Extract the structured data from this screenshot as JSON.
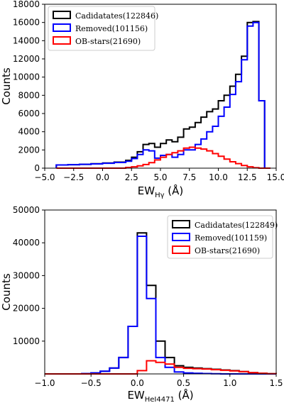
{
  "chart_data": [
    {
      "type": "histogram",
      "xlabel": "EW",
      "xlabel_sub": "Hγ",
      "xlabel_unit": " (Å)",
      "ylabel": "Counts",
      "xlim": [
        -5.0,
        15.0
      ],
      "ylim": [
        0,
        18000
      ],
      "xticks": [
        -5.0,
        -2.5,
        0.0,
        2.5,
        5.0,
        7.5,
        10.0,
        12.5,
        15.0
      ],
      "xtick_labels": [
        "−5.0",
        "−2.5",
        "0.0",
        "2.5",
        "5.0",
        "7.5",
        "10.0",
        "12.5",
        "15.0"
      ],
      "yticks": [
        0,
        2000,
        4000,
        6000,
        8000,
        10000,
        12000,
        14000,
        16000,
        18000
      ],
      "ytick_labels": [
        "0",
        "2000",
        "4000",
        "6000",
        "8000",
        "10000",
        "12000",
        "14000",
        "16000",
        "18000"
      ],
      "legend_position": "top-left",
      "bin_edges": [
        -4.0,
        -3.0,
        -2.0,
        -1.0,
        0.0,
        1.0,
        2.0,
        2.5,
        3.0,
        3.5,
        4.0,
        4.5,
        5.0,
        5.5,
        6.0,
        6.5,
        7.0,
        7.5,
        8.0,
        8.5,
        9.0,
        9.5,
        10.0,
        10.5,
        11.0,
        11.5,
        12.0,
        12.5,
        13.0,
        13.5,
        14.0,
        14.5
      ],
      "series": [
        {
          "name": "Cadidatates(122846)",
          "color": "#000000",
          "values": [
            350,
            380,
            420,
            480,
            560,
            660,
            860,
            1200,
            1800,
            2600,
            2700,
            2300,
            2700,
            3100,
            2900,
            3400,
            4300,
            4500,
            5000,
            5600,
            6200,
            6500,
            7400,
            8000,
            9000,
            10300,
            12300,
            16000,
            16100,
            7400,
            0
          ]
        },
        {
          "name": "Removed(101156)",
          "color": "#0000ff",
          "values": [
            350,
            380,
            420,
            470,
            540,
            620,
            760,
            1050,
            1500,
            2000,
            1900,
            1100,
            1400,
            1500,
            1200,
            1500,
            2000,
            2000,
            2600,
            3200,
            4000,
            4600,
            5700,
            6700,
            8100,
            9500,
            11900,
            15600,
            16000,
            7400,
            0
          ]
        },
        {
          "name": "OB-stars(21690)",
          "color": "#ff0000",
          "values": [
            0,
            0,
            0,
            0,
            0,
            0,
            80,
            150,
            250,
            400,
            600,
            900,
            1200,
            1500,
            1700,
            1900,
            2200,
            2300,
            2200,
            2100,
            1900,
            1600,
            1300,
            1000,
            700,
            500,
            300,
            150,
            50,
            0,
            0
          ]
        }
      ]
    },
    {
      "type": "histogram",
      "xlabel": "EW",
      "xlabel_sub": "HeI4471",
      "xlabel_unit": " (Å)",
      "ylabel": "Counts",
      "xlim": [
        -1.0,
        1.5
      ],
      "ylim": [
        0,
        50000
      ],
      "xticks": [
        -1.0,
        -0.5,
        0.0,
        0.5,
        1.0,
        1.5
      ],
      "xtick_labels": [
        "−1.0",
        "−0.5",
        "0.0",
        "0.5",
        "1.0",
        "1.5"
      ],
      "yticks": [
        10000,
        20000,
        30000,
        40000,
        50000
      ],
      "ytick_labels": [
        "10000",
        "20000",
        "30000",
        "40000",
        "50000"
      ],
      "legend_position": "top-right",
      "bin_edges": [
        -1.0,
        -0.9,
        -0.8,
        -0.7,
        -0.6,
        -0.5,
        -0.4,
        -0.3,
        -0.2,
        -0.1,
        0.0,
        0.1,
        0.2,
        0.3,
        0.4,
        0.5,
        0.6,
        0.7,
        0.8,
        0.9,
        1.0,
        1.1,
        1.2,
        1.3,
        1.4,
        1.5
      ],
      "series": [
        {
          "name": "Cadidatates(122849)",
          "color": "#000000",
          "values": [
            0,
            0,
            0,
            0,
            100,
            300,
            800,
            1800,
            5000,
            14500,
            43000,
            27000,
            10000,
            5000,
            2500,
            2000,
            1800,
            1600,
            1400,
            1200,
            1000,
            700,
            400,
            200,
            50
          ]
        },
        {
          "name": "Removed(101159)",
          "color": "#0000ff",
          "values": [
            0,
            0,
            0,
            0,
            100,
            300,
            800,
            1800,
            5000,
            14500,
            42000,
            23000,
            5000,
            2000,
            600,
            300,
            200,
            100,
            50,
            0,
            0,
            0,
            0,
            0,
            0
          ]
        },
        {
          "name": "OB-stars(21690)",
          "color": "#ff0000",
          "values": [
            0,
            0,
            0,
            0,
            0,
            0,
            0,
            0,
            0,
            0,
            1000,
            4000,
            3500,
            3000,
            2000,
            1700,
            1600,
            1500,
            1300,
            1100,
            900,
            700,
            400,
            200,
            50
          ]
        }
      ]
    }
  ]
}
